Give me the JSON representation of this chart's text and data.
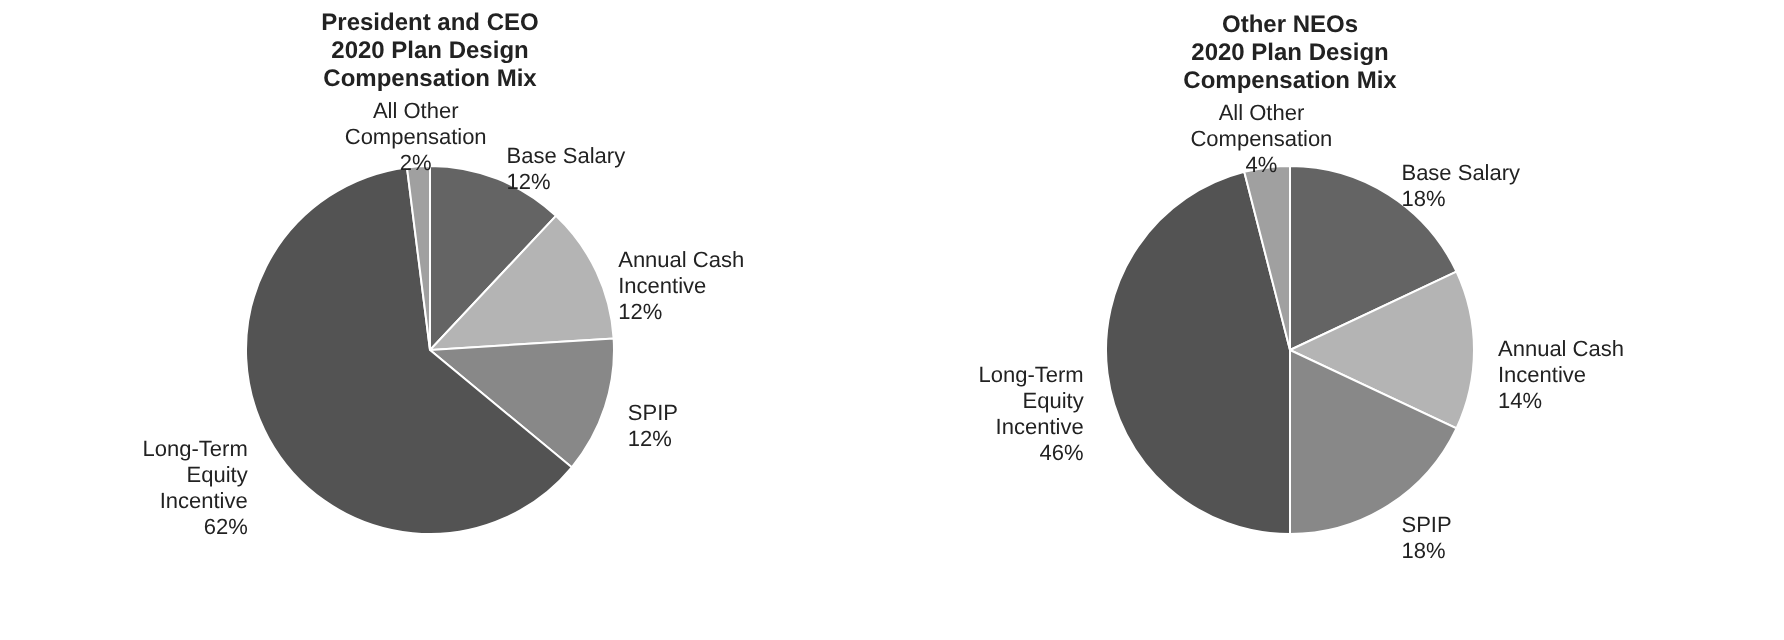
{
  "chart_data": [
    {
      "type": "pie",
      "title": "President and CEO\n2020 Plan Design\nCompensation Mix",
      "categories": [
        "Base Salary",
        "Annual Cash Incentive",
        "SPIP",
        "Long-Term Equity Incentive",
        "All Other Compensation"
      ],
      "values": [
        12,
        12,
        12,
        62,
        2
      ],
      "value_labels": [
        "12%",
        "12%",
        "12%",
        "62%",
        "2%"
      ],
      "colors": [
        "#646464",
        "#b4b4b4",
        "#888888",
        "#535353",
        "#a0a0a0"
      ],
      "legend": false
    },
    {
      "type": "pie",
      "title": "Other NEOs\n2020 Plan Design\nCompensation Mix",
      "categories": [
        "Base Salary",
        "Annual Cash Incentive",
        "SPIP",
        "Long-Term Equity Incentive",
        "All Other Compensation"
      ],
      "values": [
        18,
        14,
        18,
        46,
        4
      ],
      "value_labels": [
        "18%",
        "14%",
        "18%",
        "46%",
        "4%"
      ],
      "colors": [
        "#646464",
        "#b4b4b4",
        "#888888",
        "#535353",
        "#a0a0a0"
      ],
      "legend": false
    }
  ]
}
